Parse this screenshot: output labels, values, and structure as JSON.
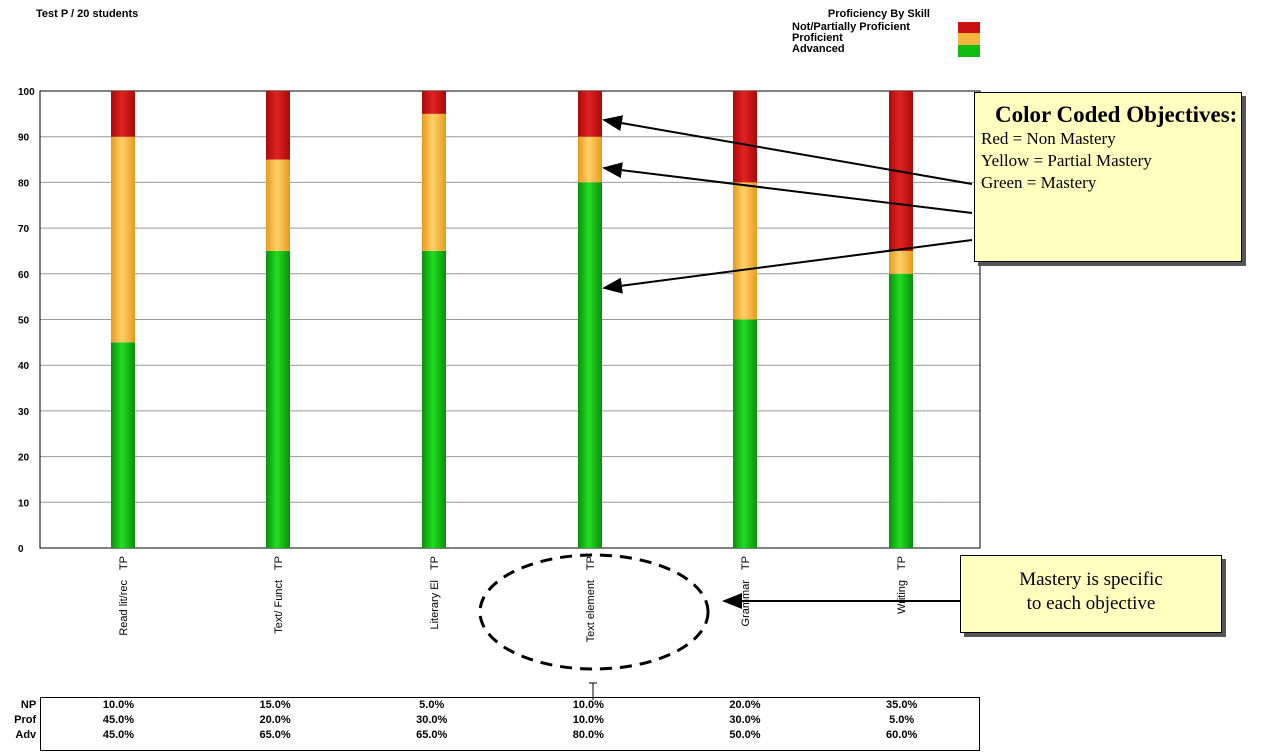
{
  "header": {
    "title": "Test P / 20 students",
    "legend_title": "Proficiency By Skill",
    "legend": [
      {
        "label": "Not/Partially Proficient",
        "color": "#cc1111"
      },
      {
        "label": "Proficient",
        "color": "#f5b43c"
      },
      {
        "label": "Advanced",
        "color": "#11bb11"
      }
    ]
  },
  "chart_data": {
    "type": "bar",
    "stacked": true,
    "ylim": [
      0,
      100
    ],
    "yticks": [
      0,
      10,
      20,
      30,
      40,
      50,
      60,
      70,
      80,
      90,
      100
    ],
    "grid": true,
    "categories": [
      "Read lit/rec",
      "Text/ Funct",
      "Literary El",
      "Text element",
      "Grammar",
      "Writing"
    ],
    "category_prefix": "TP",
    "series": [
      {
        "name": "Advanced",
        "color": "#11bb11",
        "values": [
          45,
          65,
          65,
          80,
          50,
          60
        ]
      },
      {
        "name": "Proficient",
        "color": "#f5b43c",
        "values": [
          45,
          20,
          30,
          10,
          30,
          5
        ]
      },
      {
        "name": "Not/Partially Proficient",
        "color": "#cc1111",
        "values": [
          10,
          15,
          5,
          10,
          20,
          35
        ]
      }
    ]
  },
  "callouts": {
    "colors_title": "Color Coded Objectives:",
    "colors_lines": [
      "Red = Non Mastery",
      "Yellow = Partial Mastery",
      "Green = Mastery"
    ],
    "mastery_lines": [
      "Mastery is specific",
      "to each objective"
    ]
  },
  "table": {
    "rows": [
      {
        "label": "NP",
        "values": [
          "10.0%",
          "15.0%",
          "5.0%",
          "10.0%",
          "20.0%",
          "35.0%"
        ]
      },
      {
        "label": "Prof",
        "values": [
          "45.0%",
          "20.0%",
          "30.0%",
          "10.0%",
          "30.0%",
          "5.0%"
        ]
      },
      {
        "label": "Adv",
        "values": [
          "45.0%",
          "65.0%",
          "65.0%",
          "80.0%",
          "50.0%",
          "60.0%"
        ]
      }
    ]
  }
}
